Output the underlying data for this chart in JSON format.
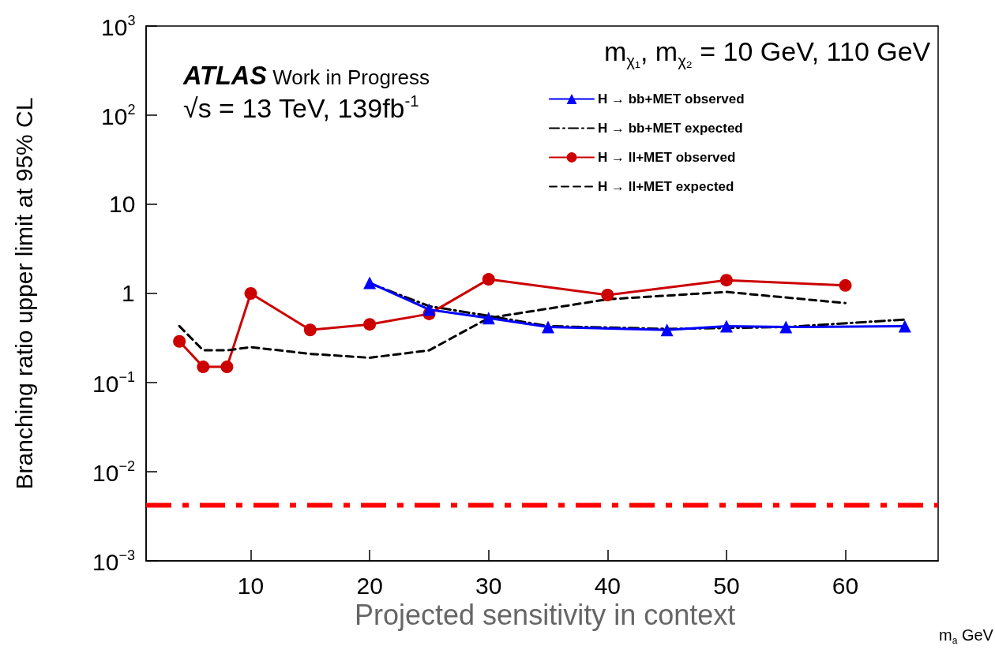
{
  "chart_data": {
    "type": "line",
    "xlabel": "m$_{a}$ GeV",
    "ylabel": "Branching ratio upper limit at 95% CL",
    "annotations": [
      "ATLAS Work in Progress",
      "√s = 13 TeV, 139fb$^{-1}$",
      "m$_{χ₁}$, m$_{χ₂}$ = 10 GeV, 110 GeV",
      "Projected sensitivity in context"
    ],
    "log": "y",
    "grid": false,
    "legend": "top right",
    "xlim": [
      1.2,
      67.8
    ],
    "xticks": [
      10,
      20,
      30,
      40,
      50,
      60
    ],
    "ylim": [
      0.001,
      1000
    ],
    "yticks": [
      {
        "value": 0.001,
        "label": "10$^{−3}$"
      },
      {
        "value": 0.01,
        "label": "10$^{−2}$"
      },
      {
        "value": 0.1,
        "label": "10$^{−1}$"
      },
      1,
      10,
      {
        "value": 100,
        "label": "10$^{2}$"
      },
      {
        "value": 1000,
        "label": "10$^{3}$"
      }
    ],
    "series": [
      {
        "name": "H → bb+MET observed",
        "color": "#0000ff",
        "marker": "triangle",
        "line_style": "solid",
        "x": [
          20,
          25,
          30,
          35,
          45,
          50,
          55,
          65
        ],
        "values": [
          1.32,
          0.66,
          0.53,
          0.42,
          0.39,
          0.43,
          0.42,
          0.43
        ]
      },
      {
        "name": "H → bb+MET expected",
        "color": "#000000",
        "marker": "none",
        "line_style": "dashdot",
        "x": [
          20,
          25,
          30,
          35,
          45,
          50,
          55,
          65
        ],
        "values": [
          1.3,
          0.72,
          0.56,
          0.43,
          0.4,
          0.41,
          0.42,
          0.51
        ]
      },
      {
        "name": "H → ll+MET observed",
        "color": "#cc0000",
        "marker": "circle",
        "line_style": "solid",
        "x": [
          4,
          6,
          8,
          10,
          15,
          20,
          25,
          30,
          40,
          50,
          60
        ],
        "values": [
          0.29,
          0.15,
          0.15,
          1.0,
          0.39,
          0.45,
          0.59,
          1.44,
          0.96,
          1.41,
          1.23
        ]
      },
      {
        "name": "H → ll+MET expected",
        "color": "#000000",
        "marker": "none",
        "line_style": "dashed",
        "x": [
          4,
          6,
          8,
          10,
          15,
          20,
          25,
          30,
          40,
          50,
          60
        ],
        "values": [
          0.43,
          0.23,
          0.23,
          0.25,
          0.21,
          0.19,
          0.23,
          0.53,
          0.86,
          1.04,
          0.78
        ]
      }
    ],
    "ref_lines": [
      {
        "axis": "y",
        "value": 0.0042,
        "color": "#ff0000",
        "line_style": "dashdot"
      }
    ]
  }
}
